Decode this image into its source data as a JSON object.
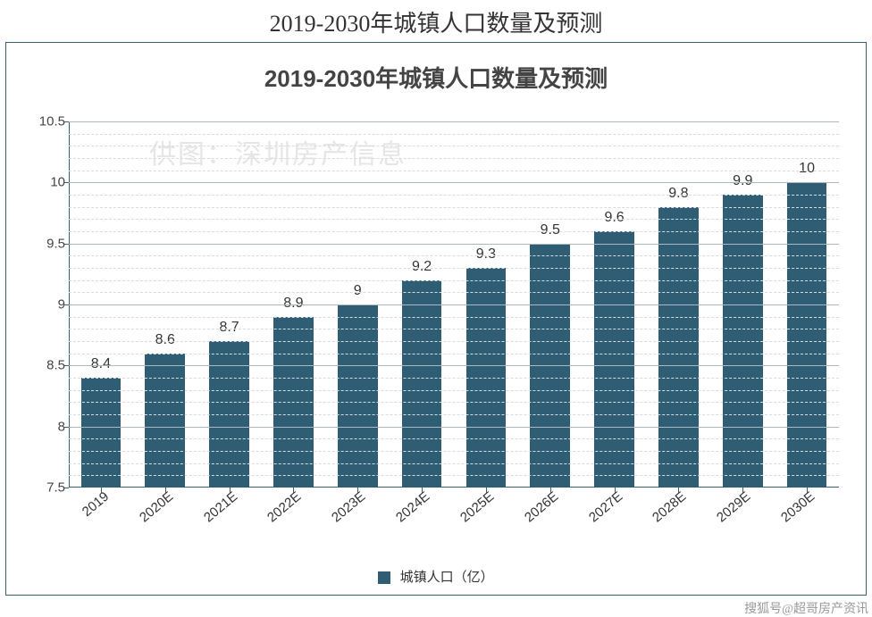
{
  "page_title": "2019-2030年城镇人口数量及预测",
  "attribution": "搜狐号@超哥房产资讯",
  "chart": {
    "type": "bar",
    "title": "2019-2030年城镇人口数量及预测",
    "title_fontsize": 26,
    "title_fontweight": "700",
    "watermark": "供图：深圳房产信息",
    "watermark_color": "#e6e6e6",
    "categories": [
      "2019",
      "2020E",
      "2021E",
      "2022E",
      "2023E",
      "2024E",
      "2025E",
      "2026E",
      "2027E",
      "2028E",
      "2029E",
      "2030E"
    ],
    "values": [
      8.4,
      8.6,
      8.7,
      8.9,
      9,
      9.2,
      9.3,
      9.5,
      9.6,
      9.8,
      9.9,
      10
    ],
    "value_labels": [
      "8.4",
      "8.6",
      "8.7",
      "8.9",
      "9",
      "9.2",
      "9.3",
      "9.5",
      "9.6",
      "9.8",
      "9.9",
      "10"
    ],
    "bar_color": "#2f5d73",
    "ylim": [
      7.5,
      10.5
    ],
    "ytick_major": [
      7.5,
      8,
      8.5,
      9,
      9.5,
      10,
      10.5
    ],
    "ytick_labels": [
      "7.5",
      "8",
      "8.5",
      "9",
      "9.5",
      "10",
      "10.5"
    ],
    "grid_minor_step": 0.1,
    "grid_major_color": "#aab8c2",
    "grid_minor_color": "#d4dde3",
    "axis_color": "#3a6074",
    "label_fontsize": 15,
    "value_label_fontsize": 16,
    "bar_width_ratio": 0.62,
    "xlabel_rotation": -40,
    "background_color": "#ffffff",
    "legend": {
      "label": "城镇人口（亿）",
      "color": "#2f5d73"
    }
  }
}
